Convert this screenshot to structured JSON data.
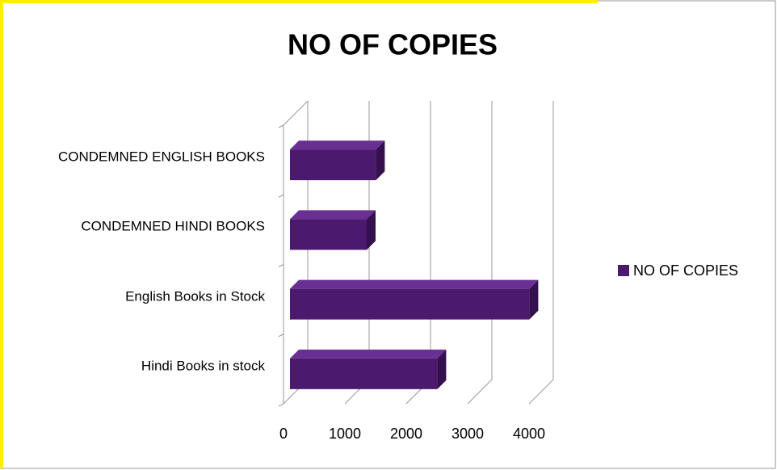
{
  "chart_data": {
    "type": "bar3d_horizontal",
    "title": "NO OF COPIES",
    "categories": [
      "Hindi Books in stock",
      "English Books in Stock",
      "CONDEMNED HINDI BOOKS",
      "CONDEMNED ENGLISH BOOKS"
    ],
    "series": [
      {
        "name": "NO OF COPIES",
        "color": "#4b1a6e",
        "values": [
          2400,
          3900,
          1250,
          1400
        ]
      }
    ],
    "xlim": [
      0,
      4000
    ],
    "xticks": [
      0,
      1000,
      2000,
      3000,
      4000
    ],
    "grid": true,
    "legend": "right"
  }
}
